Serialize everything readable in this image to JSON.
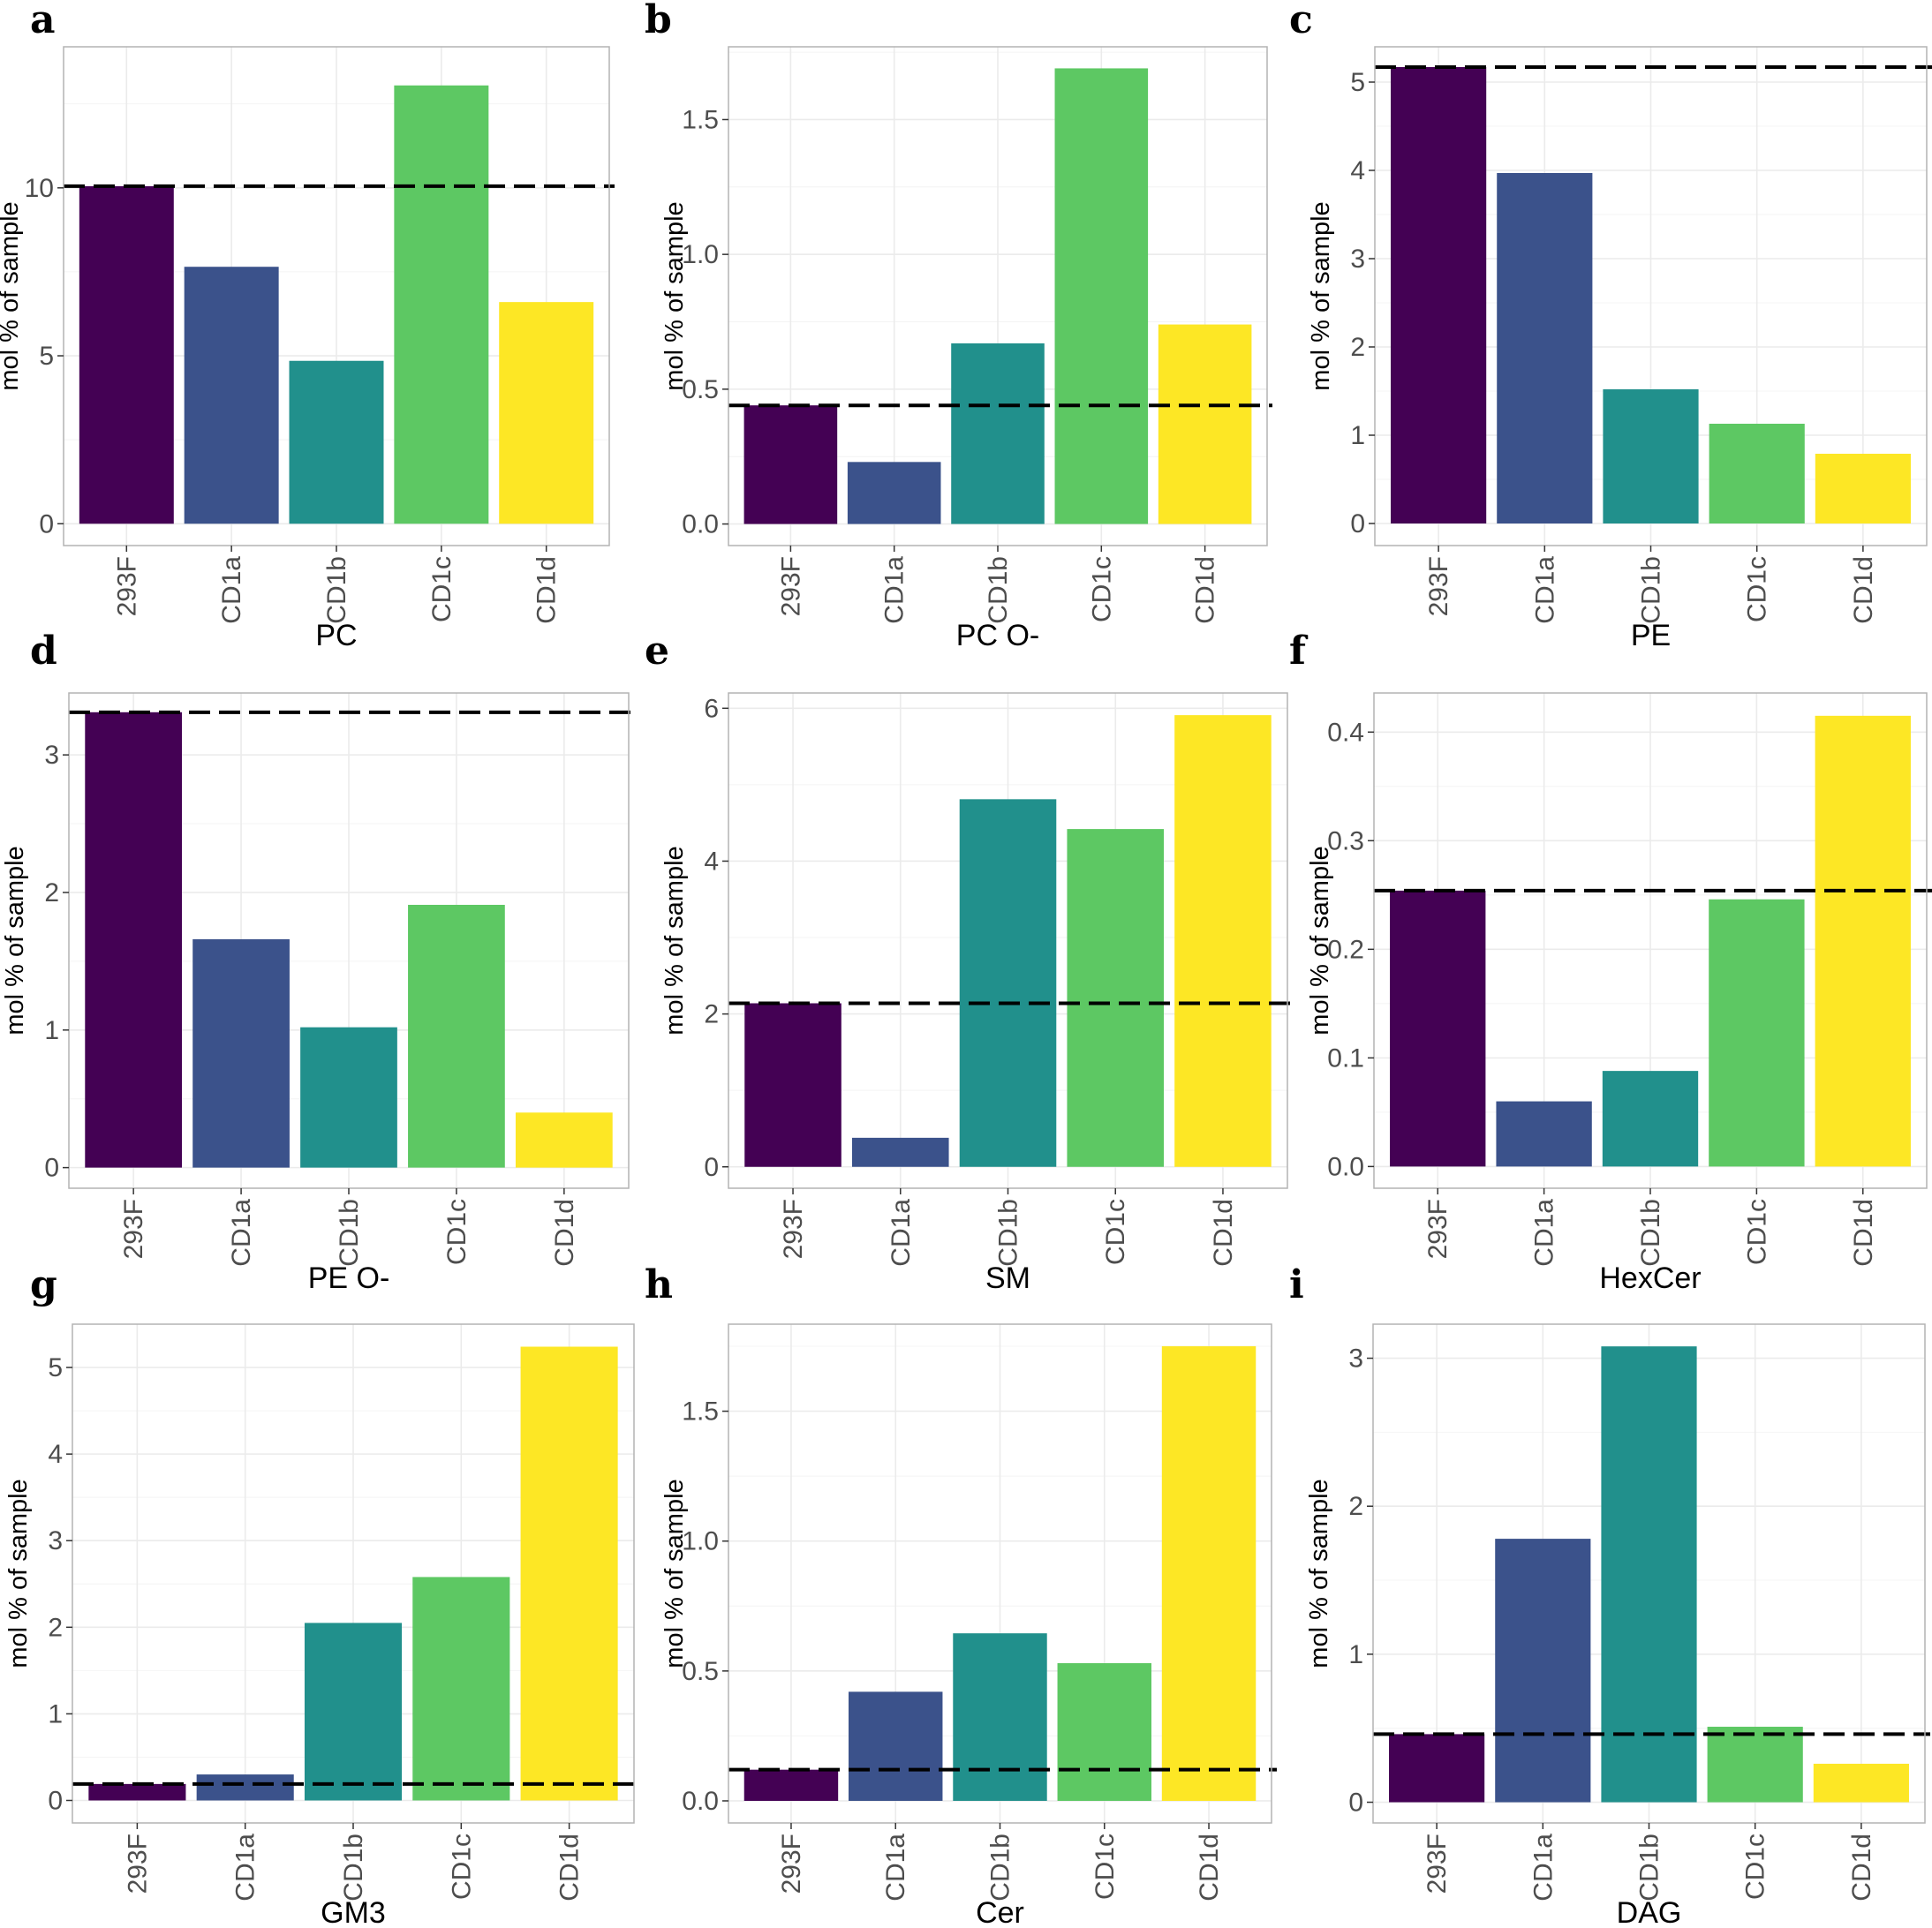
{
  "figure": {
    "ylabel": "mol % of sample",
    "colors": {
      "293F": "#440154",
      "CD1a": "#3b528b",
      "CD1b": "#21908c",
      "CD1c": "#5dc863",
      "CD1d": "#fde725"
    }
  },
  "chart_data": [
    {
      "type": "bar",
      "panel": "a",
      "title": "PC",
      "ylabel": "mol % of sample",
      "categories": [
        "293F",
        "CD1a",
        "CD1b",
        "CD1c",
        "CD1d"
      ],
      "values": [
        10.05,
        7.65,
        4.85,
        13.05,
        6.6
      ],
      "reference_line": 10.05,
      "ylim": [
        -0.65,
        14.2
      ],
      "yticks": [
        0,
        5,
        10
      ],
      "ytick_labels": [
        "0",
        "5",
        "10"
      ]
    },
    {
      "type": "bar",
      "panel": "b",
      "title": "PC O-",
      "ylabel": "mol % of sample",
      "categories": [
        "293F",
        "CD1a",
        "CD1b",
        "CD1c",
        "CD1d"
      ],
      "values": [
        0.44,
        0.23,
        0.67,
        1.69,
        0.74
      ],
      "reference_line": 0.44,
      "ylim": [
        -0.08,
        1.77
      ],
      "yticks": [
        0.0,
        0.5,
        1.0,
        1.5
      ],
      "ytick_labels": [
        "0.0",
        "0.5",
        "1.0",
        "1.5"
      ]
    },
    {
      "type": "bar",
      "panel": "c",
      "title": "PE",
      "ylabel": "mol % of sample",
      "categories": [
        "293F",
        "CD1a",
        "CD1b",
        "CD1c",
        "CD1d"
      ],
      "values": [
        5.17,
        3.97,
        1.52,
        1.13,
        0.79
      ],
      "reference_line": 5.17,
      "ylim": [
        -0.25,
        5.4
      ],
      "yticks": [
        0,
        1,
        2,
        3,
        4,
        5
      ],
      "ytick_labels": [
        "0",
        "1",
        "2",
        "3",
        "4",
        "5"
      ]
    },
    {
      "type": "bar",
      "panel": "d",
      "title": "PE O-",
      "ylabel": "mol % of sample",
      "categories": [
        "293F",
        "CD1a",
        "CD1b",
        "CD1c",
        "CD1d"
      ],
      "values": [
        3.31,
        1.66,
        1.02,
        1.91,
        0.4
      ],
      "reference_line": 3.31,
      "ylim": [
        -0.15,
        3.45
      ],
      "yticks": [
        0,
        1,
        2,
        3
      ],
      "ytick_labels": [
        "0",
        "1",
        "2",
        "3"
      ]
    },
    {
      "type": "bar",
      "panel": "e",
      "title": "SM",
      "ylabel": "mol % of sample",
      "categories": [
        "293F",
        "CD1a",
        "CD1b",
        "CD1c",
        "CD1d"
      ],
      "values": [
        2.14,
        0.38,
        4.81,
        4.42,
        5.91
      ],
      "reference_line": 2.14,
      "ylim": [
        -0.28,
        6.2
      ],
      "yticks": [
        0,
        2,
        4,
        6
      ],
      "ytick_labels": [
        "0",
        "2",
        "4",
        "6"
      ]
    },
    {
      "type": "bar",
      "panel": "f",
      "title": "HexCer",
      "ylabel": "mol % of sample",
      "categories": [
        "293F",
        "CD1a",
        "CD1b",
        "CD1c",
        "CD1d"
      ],
      "values": [
        0.254,
        0.06,
        0.088,
        0.246,
        0.415
      ],
      "reference_line": 0.254,
      "ylim": [
        -0.02,
        0.436
      ],
      "yticks": [
        0.0,
        0.1,
        0.2,
        0.3,
        0.4
      ],
      "ytick_labels": [
        "0.0",
        "0.1",
        "0.2",
        "0.3",
        "0.4"
      ]
    },
    {
      "type": "bar",
      "panel": "g",
      "title": "GM3",
      "ylabel": "mol % of sample",
      "categories": [
        "293F",
        "CD1a",
        "CD1b",
        "CD1c",
        "CD1d"
      ],
      "values": [
        0.19,
        0.3,
        2.05,
        2.58,
        5.24
      ],
      "reference_line": 0.19,
      "ylim": [
        -0.26,
        5.5
      ],
      "yticks": [
        0,
        1,
        2,
        3,
        4,
        5
      ],
      "ytick_labels": [
        "0",
        "1",
        "2",
        "3",
        "4",
        "5"
      ]
    },
    {
      "type": "bar",
      "panel": "h",
      "title": "Cer",
      "ylabel": "mol % of sample",
      "categories": [
        "293F",
        "CD1a",
        "CD1b",
        "CD1c",
        "CD1d"
      ],
      "values": [
        0.12,
        0.42,
        0.645,
        0.53,
        1.75
      ],
      "reference_line": 0.12,
      "ylim": [
        -0.085,
        1.835
      ],
      "yticks": [
        0.0,
        0.5,
        1.0,
        1.5
      ],
      "ytick_labels": [
        "0.0",
        "0.5",
        "1.0",
        "1.5"
      ]
    },
    {
      "type": "bar",
      "panel": "i",
      "title": "DAG",
      "ylabel": "mol % of sample",
      "categories": [
        "293F",
        "CD1a",
        "CD1b",
        "CD1c",
        "CD1d"
      ],
      "values": [
        0.46,
        1.78,
        3.08,
        0.51,
        0.26
      ],
      "reference_line": 0.46,
      "ylim": [
        -0.14,
        3.23
      ],
      "yticks": [
        0,
        1,
        2,
        3
      ],
      "ytick_labels": [
        "0",
        "1",
        "2",
        "3"
      ]
    }
  ]
}
